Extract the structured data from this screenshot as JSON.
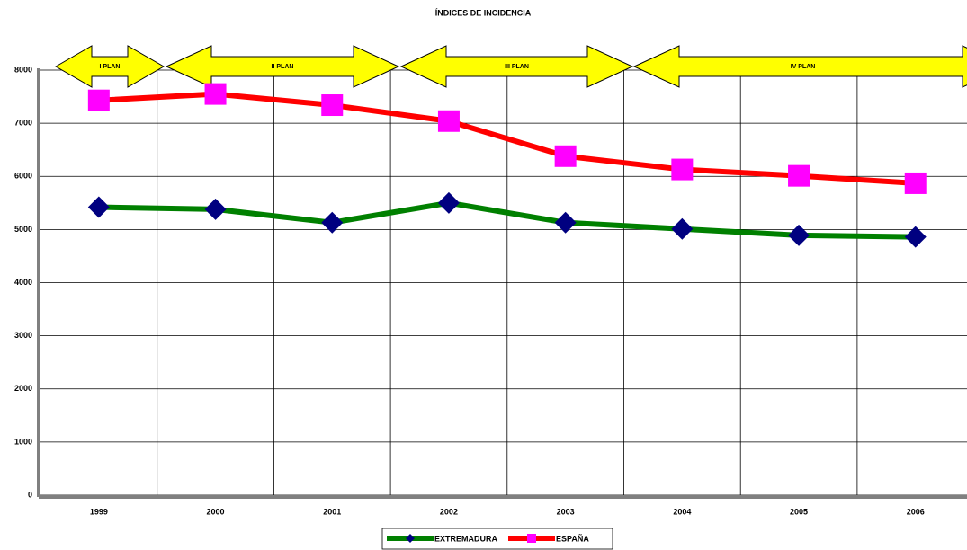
{
  "chart_data": {
    "type": "line",
    "title": "ÍNDICES DE INCIDENCIA",
    "categories": [
      "1999",
      "2000",
      "2001",
      "2002",
      "2003",
      "2004",
      "2005",
      "2006"
    ],
    "series": [
      {
        "name": "EXTREMADURA",
        "color": "#008000",
        "marker": "diamond",
        "marker_color": "#000080",
        "values": [
          5420,
          5380,
          5130,
          5500,
          5130,
          5010,
          4890,
          4860
        ]
      },
      {
        "name": "ESPAÑA",
        "color": "#ff0000",
        "marker": "square",
        "marker_color": "#ff00ff",
        "values": [
          7430,
          7550,
          7340,
          7040,
          6380,
          6130,
          6010,
          5870
        ]
      }
    ],
    "ylim": [
      0,
      8000
    ],
    "yticks": [
      0,
      1000,
      2000,
      3000,
      4000,
      5000,
      6000,
      7000,
      8000
    ],
    "grid": true,
    "legend": "bottom",
    "annotations": [
      "I PLAN",
      "II PLAN",
      "III PLAN",
      "IV PLAN"
    ]
  }
}
